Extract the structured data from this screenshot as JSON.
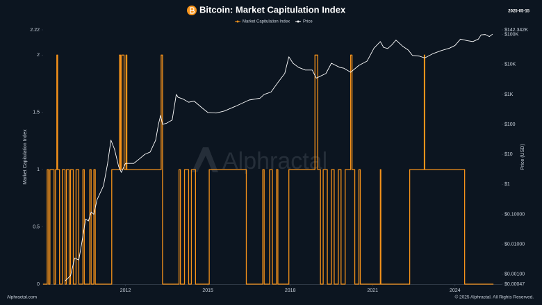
{
  "chart_data": {
    "type": "line",
    "title": "Bitcoin: Market Capitulation Index",
    "date": "2025-05-15",
    "watermark": "Alphractal",
    "source": "Alphractal.com",
    "copyright": "© 2025 Alphractal. All Rights Reserved.",
    "ylabel": "Market Capitulation Index",
    "y2label": "Price (USD)",
    "xlim": [
      2009.0,
      2025.7
    ],
    "xticks": [
      2012,
      2015,
      2018,
      2021,
      2024
    ],
    "ylim": [
      0,
      2.22
    ],
    "yticks": [
      0,
      0.5,
      1,
      1.5,
      2,
      2.22
    ],
    "y2lim": [
      0.00047,
      142342
    ],
    "y2scale": "log",
    "y2ticks": [
      {
        "value": 0.00047,
        "label": "$0.00047"
      },
      {
        "value": 0.001,
        "label": "$0.00100"
      },
      {
        "value": 0.01,
        "label": "$0.01000"
      },
      {
        "value": 0.1,
        "label": "$0.10000"
      },
      {
        "value": 1,
        "label": "$1"
      },
      {
        "value": 10,
        "label": "$10"
      },
      {
        "value": 100,
        "label": "$100"
      },
      {
        "value": 1000,
        "label": "$1K"
      },
      {
        "value": 10000,
        "label": "$10K"
      },
      {
        "value": 100000,
        "label": "$100K"
      },
      {
        "value": 142342,
        "label": "$142.342K"
      }
    ],
    "grid": false,
    "series": [
      {
        "name": "Market Capitulation Index",
        "color": "#f7931a",
        "axis": "y",
        "x": [
          2009.0,
          2009.15,
          2009.15,
          2009.2,
          2009.2,
          2009.25,
          2009.25,
          2009.4,
          2009.4,
          2009.45,
          2009.45,
          2009.5,
          2009.5,
          2009.53,
          2009.53,
          2009.6,
          2009.6,
          2009.7,
          2009.7,
          2009.8,
          2009.8,
          2009.85,
          2009.85,
          2009.95,
          2009.95,
          2010.0,
          2010.0,
          2010.1,
          2010.1,
          2010.2,
          2010.2,
          2010.3,
          2010.3,
          2010.45,
          2010.45,
          2010.5,
          2010.5,
          2010.7,
          2010.7,
          2010.75,
          2010.75,
          2010.85,
          2010.85,
          2010.9,
          2010.9,
          2011.5,
          2011.5,
          2011.78,
          2011.78,
          2011.82,
          2011.82,
          2011.86,
          2011.86,
          2011.95,
          2011.95,
          2012.02,
          2012.02,
          2012.05,
          2012.05,
          2013.3,
          2013.3,
          2013.35,
          2013.35,
          2013.95,
          2013.95,
          2014.0,
          2014.0,
          2014.15,
          2014.15,
          2014.3,
          2014.3,
          2014.4,
          2014.4,
          2014.55,
          2014.55,
          2015.05,
          2015.05,
          2016.4,
          2016.4,
          2017.0,
          2017.0,
          2017.05,
          2017.05,
          2017.25,
          2017.25,
          2017.35,
          2017.35,
          2017.5,
          2017.5,
          2017.55,
          2017.55,
          2017.95,
          2017.95,
          2018.9,
          2018.9,
          2019.0,
          2019.0,
          2019.1,
          2019.1,
          2019.2,
          2019.2,
          2019.35,
          2019.35,
          2019.5,
          2019.5,
          2019.6,
          2019.6,
          2019.75,
          2019.75,
          2019.85,
          2019.85,
          2020.0,
          2020.0,
          2020.2,
          2020.2,
          2020.25,
          2020.25,
          2020.35,
          2020.35,
          2020.5,
          2020.5,
          2020.55,
          2020.55,
          2021.28,
          2021.28,
          2021.3,
          2021.3,
          2022.35,
          2022.35,
          2022.88,
          2022.88,
          2022.9,
          2022.9,
          2024.35,
          2024.35,
          2025.4
        ],
        "values": [
          0,
          0,
          1,
          1,
          0,
          0,
          1,
          1,
          0,
          0,
          1,
          1,
          2,
          2,
          1,
          1,
          0,
          0,
          1,
          1,
          0,
          0,
          1,
          1,
          0,
          0,
          1,
          1,
          0,
          0,
          1,
          1,
          0,
          0,
          1,
          1,
          0,
          0,
          1,
          1,
          0,
          0,
          1,
          1,
          0,
          0,
          1,
          1,
          2,
          2,
          1,
          1,
          2,
          2,
          1,
          1,
          2,
          2,
          1,
          1,
          2,
          2,
          0,
          0,
          1,
          1,
          0,
          0,
          1,
          1,
          0,
          0,
          1,
          1,
          0,
          0,
          1,
          1,
          0,
          0,
          1,
          1,
          0,
          0,
          1,
          1,
          0,
          0,
          1,
          1,
          0,
          0,
          1,
          1,
          2,
          2,
          1,
          1,
          0,
          0,
          1,
          1,
          0,
          0,
          1,
          1,
          0,
          0,
          1,
          1,
          0,
          0,
          1,
          1,
          2,
          2,
          1,
          1,
          0,
          0,
          1,
          1,
          0,
          0,
          1,
          1,
          0,
          0,
          1,
          1,
          2,
          2,
          1,
          1,
          0,
          0
        ]
      },
      {
        "name": "Price",
        "color": "#ffffff",
        "axis": "y2",
        "x": [
          2009.8,
          2010.0,
          2010.15,
          2010.3,
          2010.4,
          2010.55,
          2010.65,
          2010.75,
          2010.85,
          2010.96,
          2011.2,
          2011.35,
          2011.47,
          2011.6,
          2011.75,
          2011.85,
          2012.0,
          2012.3,
          2012.5,
          2012.7,
          2012.9,
          2013.1,
          2013.2,
          2013.28,
          2013.35,
          2013.5,
          2013.7,
          2013.85,
          2013.92,
          2014.1,
          2014.3,
          2014.5,
          2014.8,
          2015.0,
          2015.3,
          2015.6,
          2016.0,
          2016.5,
          2016.9,
          2017.05,
          2017.3,
          2017.55,
          2017.8,
          2017.95,
          2018.1,
          2018.3,
          2018.55,
          2018.8,
          2018.95,
          2019.3,
          2019.5,
          2019.8,
          2019.95,
          2020.2,
          2020.5,
          2020.8,
          2021.05,
          2021.28,
          2021.4,
          2021.55,
          2021.7,
          2021.85,
          2022.1,
          2022.3,
          2022.45,
          2022.7,
          2022.9,
          2023.2,
          2023.5,
          2023.8,
          2024.0,
          2024.2,
          2024.45,
          2024.65,
          2024.85,
          2024.95,
          2025.1,
          2025.25,
          2025.37
        ],
        "values": [
          0.0006,
          0.0009,
          0.0035,
          0.003,
          0.01,
          0.07,
          0.06,
          0.12,
          0.1,
          0.3,
          0.9,
          5,
          30,
          15,
          4,
          2.5,
          5,
          5,
          7,
          10,
          12,
          30,
          100,
          200,
          100,
          110,
          140,
          1000,
          800,
          700,
          550,
          600,
          350,
          250,
          240,
          280,
          400,
          650,
          750,
          1000,
          1200,
          2500,
          5000,
          18000,
          11000,
          8000,
          6500,
          6500,
          3500,
          5000,
          11000,
          8000,
          7500,
          5500,
          9300,
          13000,
          35000,
          58000,
          37000,
          34000,
          45000,
          65000,
          40000,
          30000,
          20000,
          19000,
          16500,
          23000,
          29000,
          35000,
          43000,
          70000,
          62000,
          58000,
          70000,
          97000,
          100000,
          85000,
          103000
        ]
      }
    ]
  }
}
